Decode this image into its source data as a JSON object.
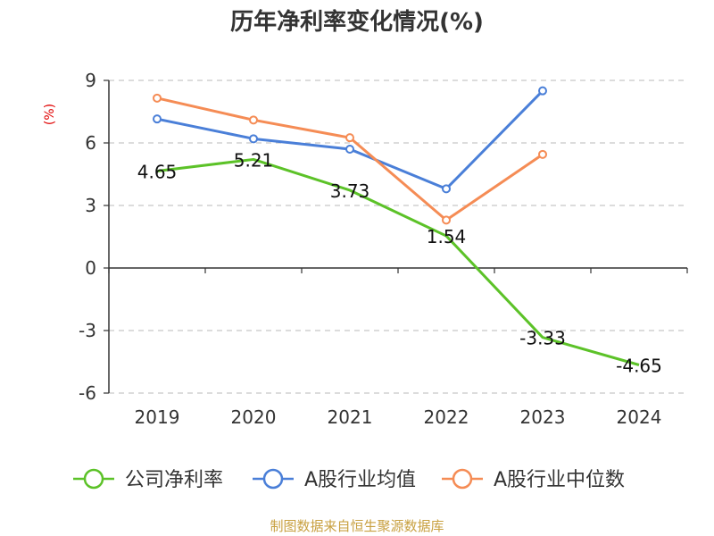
{
  "chart_data": {
    "type": "line",
    "title": "历年净利率变化情况(%)",
    "ylabel": "(%)",
    "categories": [
      "2019",
      "2020",
      "2021",
      "2022",
      "2023",
      "2024"
    ],
    "ylim": [
      -6,
      9
    ],
    "yticks": [
      "9",
      "6",
      "3",
      "0",
      "-3",
      "-6"
    ],
    "grid": true,
    "legend_position": "bottom",
    "series": [
      {
        "name": "公司净利率",
        "color": "#5cc228",
        "values": [
          4.65,
          5.21,
          3.73,
          1.54,
          -3.33,
          -4.65
        ],
        "labels": [
          "4.65",
          "5.21",
          "3.73",
          "1.54",
          "-3.33",
          "-4.65"
        ],
        "markers": false
      },
      {
        "name": "A股行业均值",
        "color": "#4a7fd8",
        "values": [
          7.15,
          6.2,
          5.7,
          3.8,
          8.5,
          null
        ],
        "markers": true
      },
      {
        "name": "A股行业中位数",
        "color": "#f58c55",
        "values": [
          8.15,
          7.1,
          6.25,
          2.3,
          5.45,
          null
        ],
        "markers": true
      }
    ]
  },
  "source": "制图数据来自恒生聚源数据库"
}
